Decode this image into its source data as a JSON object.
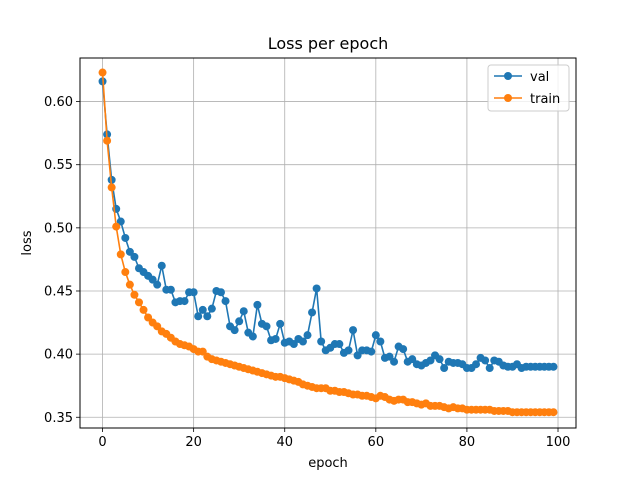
{
  "chart_data": {
    "type": "line",
    "title": "Loss per epoch",
    "xlabel": "epoch",
    "ylabel": "loss",
    "xlim": [
      -4.95,
      103.95
    ],
    "ylim": [
      0.3415,
      0.6345
    ],
    "xticks": [
      0,
      20,
      40,
      60,
      80,
      100
    ],
    "yticks": [
      0.35,
      0.4,
      0.45,
      0.5,
      0.55,
      0.6
    ],
    "ytick_labels": [
      "0.35",
      "0.40",
      "0.45",
      "0.50",
      "0.55",
      "0.60"
    ],
    "grid": true,
    "legend_position": "top-right",
    "x": [
      0,
      1,
      2,
      3,
      4,
      5,
      6,
      7,
      8,
      9,
      10,
      11,
      12,
      13,
      14,
      15,
      16,
      17,
      18,
      19,
      20,
      21,
      22,
      23,
      24,
      25,
      26,
      27,
      28,
      29,
      30,
      31,
      32,
      33,
      34,
      35,
      36,
      37,
      38,
      39,
      40,
      41,
      42,
      43,
      44,
      45,
      46,
      47,
      48,
      49,
      50,
      51,
      52,
      53,
      54,
      55,
      56,
      57,
      58,
      59,
      60,
      61,
      62,
      63,
      64,
      65,
      66,
      67,
      68,
      69,
      70,
      71,
      72,
      73,
      74,
      75,
      76,
      77,
      78,
      79,
      80,
      81,
      82,
      83,
      84,
      85,
      86,
      87,
      88,
      89,
      90,
      91,
      92,
      93,
      94,
      95,
      96,
      97,
      98,
      99
    ],
    "series": [
      {
        "name": "val",
        "color": "#1f77b4",
        "values": [
          0.616,
          0.574,
          0.538,
          0.515,
          0.505,
          0.492,
          0.481,
          0.477,
          0.468,
          0.465,
          0.462,
          0.459,
          0.455,
          0.47,
          0.451,
          0.451,
          0.441,
          0.442,
          0.442,
          0.449,
          0.449,
          0.43,
          0.435,
          0.43,
          0.436,
          0.45,
          0.449,
          0.442,
          0.422,
          0.419,
          0.426,
          0.434,
          0.417,
          0.414,
          0.439,
          0.424,
          0.422,
          0.411,
          0.412,
          0.424,
          0.409,
          0.41,
          0.408,
          0.412,
          0.41,
          0.415,
          0.433,
          0.452,
          0.41,
          0.403,
          0.405,
          0.408,
          0.408,
          0.401,
          0.403,
          0.419,
          0.399,
          0.403,
          0.403,
          0.402,
          0.415,
          0.41,
          0.397,
          0.398,
          0.394,
          0.406,
          0.404,
          0.394,
          0.396,
          0.392,
          0.391,
          0.393,
          0.395,
          0.399,
          0.396,
          0.389,
          0.394,
          0.393,
          0.393,
          0.392,
          0.389,
          0.389,
          0.392,
          0.397,
          0.395,
          0.389,
          0.395,
          0.394,
          0.391,
          0.39,
          0.39,
          0.392,
          0.389,
          0.39,
          0.39,
          0.39,
          0.39,
          0.39,
          0.39,
          0.39
        ]
      },
      {
        "name": "train",
        "color": "#ff7f0e",
        "values": [
          0.623,
          0.569,
          0.532,
          0.501,
          0.479,
          0.465,
          0.455,
          0.447,
          0.441,
          0.435,
          0.429,
          0.425,
          0.422,
          0.418,
          0.416,
          0.413,
          0.41,
          0.408,
          0.407,
          0.406,
          0.404,
          0.402,
          0.402,
          0.398,
          0.396,
          0.395,
          0.394,
          0.393,
          0.392,
          0.391,
          0.39,
          0.389,
          0.388,
          0.387,
          0.386,
          0.385,
          0.384,
          0.383,
          0.382,
          0.382,
          0.381,
          0.38,
          0.379,
          0.378,
          0.376,
          0.375,
          0.374,
          0.373,
          0.373,
          0.373,
          0.371,
          0.371,
          0.37,
          0.37,
          0.369,
          0.368,
          0.368,
          0.367,
          0.367,
          0.366,
          0.365,
          0.367,
          0.366,
          0.364,
          0.363,
          0.364,
          0.364,
          0.362,
          0.362,
          0.361,
          0.36,
          0.361,
          0.359,
          0.359,
          0.359,
          0.358,
          0.357,
          0.358,
          0.357,
          0.357,
          0.356,
          0.356,
          0.356,
          0.356,
          0.356,
          0.356,
          0.355,
          0.355,
          0.355,
          0.355,
          0.354,
          0.354,
          0.354,
          0.354,
          0.354,
          0.354,
          0.354,
          0.354,
          0.354,
          0.354
        ]
      }
    ]
  }
}
